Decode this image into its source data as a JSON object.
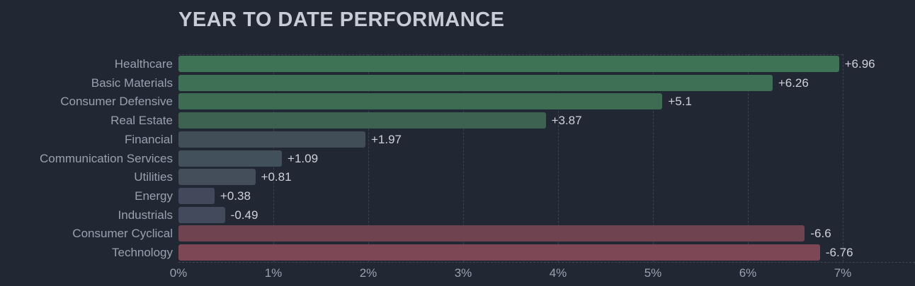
{
  "chart_data": {
    "type": "bar",
    "orientation": "horizontal",
    "title": "YEAR TO DATE PERFORMANCE",
    "categories": [
      "Healthcare",
      "Basic Materials",
      "Consumer Defensive",
      "Real Estate",
      "Financial",
      "Communication Services",
      "Utilities",
      "Energy",
      "Industrials",
      "Consumer Cyclical",
      "Technology"
    ],
    "values": [
      6.96,
      6.26,
      5.1,
      3.87,
      1.97,
      1.09,
      0.81,
      0.38,
      -0.49,
      -6.6,
      -6.76
    ],
    "value_labels": [
      "+6.96",
      "+6.26",
      "+5.1",
      "+3.87",
      "+1.97",
      "+1.09",
      "+0.81",
      "+0.38",
      "-0.49",
      "-6.6",
      "-6.76"
    ],
    "bar_colors": [
      "#3e7355",
      "#3d7054",
      "#3e6c53",
      "#3d6252",
      "#414e58",
      "#42505b",
      "#434e5a",
      "#43485b",
      "#434a5c",
      "#6f4450",
      "#7d4755"
    ],
    "x_ticks": [
      "0%",
      "1%",
      "2%",
      "3%",
      "4%",
      "5%",
      "6%",
      "7%"
    ],
    "xlim": [
      0,
      7
    ],
    "xlabel": "",
    "ylabel": "",
    "legend": "none",
    "grid": "vertical dashed gridlines at each 1%, dashed top and bottom plot borders",
    "note": "negative values drawn rightward by absolute value in red; positives shade from gray-blue (small) to green (large)"
  },
  "theme": {
    "background": "#222734",
    "title_color": "#c7ccd6",
    "category_label_color": "#99a1ae",
    "value_label_color": "#cdd2da",
    "tick_label_color": "#9aa2b0",
    "gridline_color": "#3b4251"
  }
}
